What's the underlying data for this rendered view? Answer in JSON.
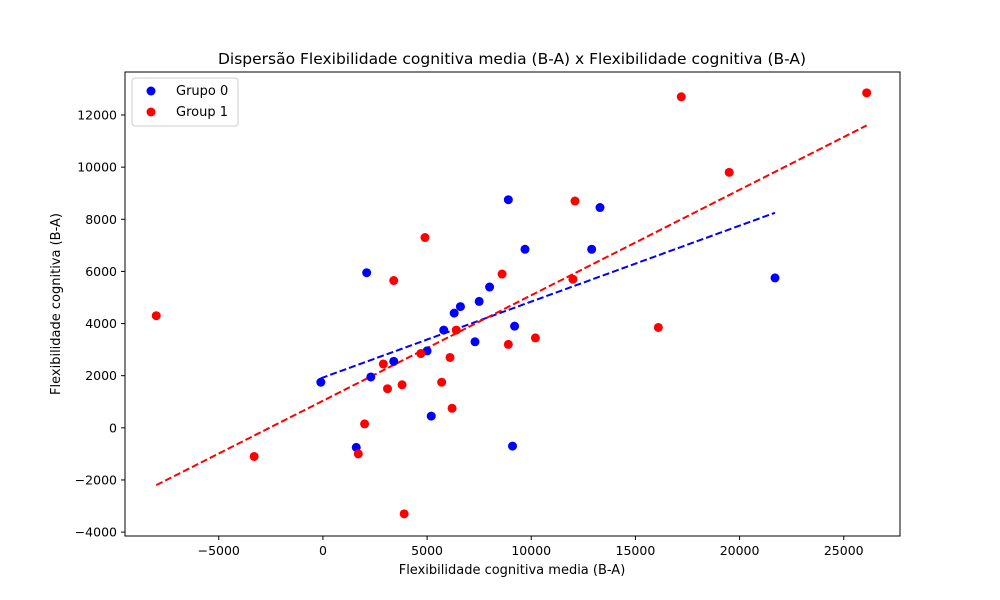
{
  "chart_data": {
    "type": "scatter",
    "title": "Dispersão Flexibilidade cognitiva media (B-A) x Flexibilidade cognitiva (B-A)",
    "xlabel": "Flexibilidade cognitiva media (B-A)",
    "ylabel": "Flexibilidade cognitiva (B-A)",
    "xlim": [
      -9500,
      27700
    ],
    "ylim": [
      -4150,
      13650
    ],
    "xticks": [
      -5000,
      0,
      5000,
      10000,
      15000,
      20000,
      25000
    ],
    "yticks": [
      -4000,
      -2000,
      0,
      2000,
      4000,
      6000,
      8000,
      10000,
      12000
    ],
    "xtick_labels": [
      "−5000",
      "0",
      "5000",
      "10000",
      "15000",
      "20000",
      "25000"
    ],
    "ytick_labels": [
      "−4000",
      "−2000",
      "0",
      "2000",
      "4000",
      "6000",
      "8000",
      "10000",
      "12000"
    ],
    "grid": false,
    "legend_position": "top-left",
    "series": [
      {
        "name": "Grupo 0",
        "color": "#0000ff",
        "points": [
          [
            -100,
            1750
          ],
          [
            1600,
            -750
          ],
          [
            2100,
            5950
          ],
          [
            2300,
            1950
          ],
          [
            3400,
            2550
          ],
          [
            5000,
            2950
          ],
          [
            5200,
            450
          ],
          [
            5800,
            3750
          ],
          [
            6300,
            4400
          ],
          [
            6600,
            4650
          ],
          [
            7300,
            3300
          ],
          [
            7500,
            4850
          ],
          [
            8000,
            5400
          ],
          [
            8900,
            8750
          ],
          [
            9100,
            -700
          ],
          [
            9200,
            3900
          ],
          [
            9700,
            6850
          ],
          [
            12900,
            6850
          ],
          [
            13300,
            8450
          ],
          [
            21700,
            5750
          ]
        ],
        "fit_line": {
          "x": [
            -100,
            21700
          ],
          "y": [
            1900,
            8250
          ],
          "style": "dashed"
        }
      },
      {
        "name": "Group 1",
        "color": "#ff0000",
        "points": [
          [
            -8000,
            4300
          ],
          [
            -3300,
            -1100
          ],
          [
            1700,
            -1000
          ],
          [
            2000,
            150
          ],
          [
            2900,
            2450
          ],
          [
            3100,
            1500
          ],
          [
            3400,
            5650
          ],
          [
            3800,
            1650
          ],
          [
            3900,
            -3300
          ],
          [
            4700,
            2850
          ],
          [
            4900,
            7300
          ],
          [
            5700,
            1750
          ],
          [
            6100,
            2700
          ],
          [
            6200,
            750
          ],
          [
            6400,
            3750
          ],
          [
            8600,
            5900
          ],
          [
            8900,
            3200
          ],
          [
            10200,
            3450
          ],
          [
            12000,
            5700
          ],
          [
            12100,
            8700
          ],
          [
            16100,
            3850
          ],
          [
            17200,
            12700
          ],
          [
            19500,
            9800
          ],
          [
            26100,
            12850
          ]
        ],
        "fit_line": {
          "x": [
            -8000,
            26100
          ],
          "y": [
            -2200,
            11600
          ],
          "style": "dashed"
        }
      }
    ]
  }
}
